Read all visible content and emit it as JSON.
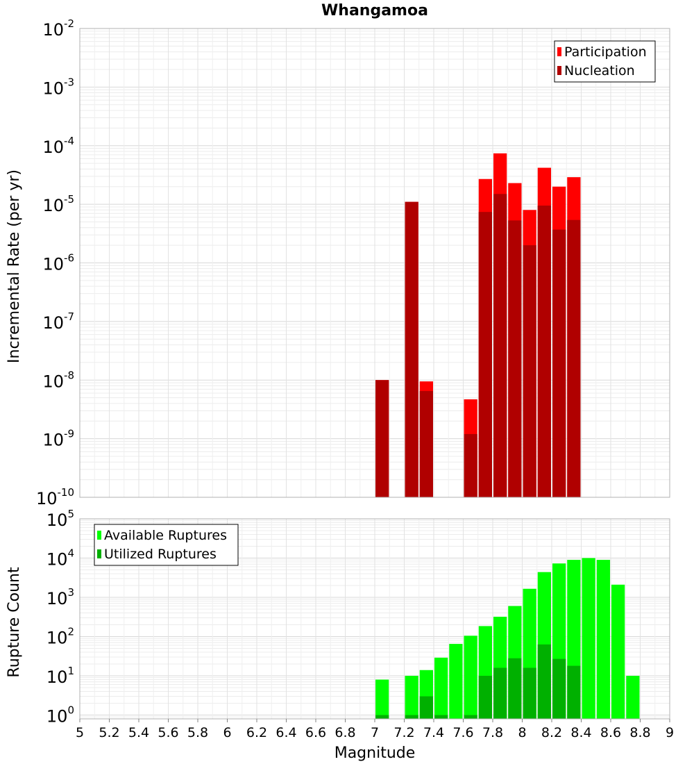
{
  "chart_data": [
    {
      "type": "bar",
      "title": "Whangamoa",
      "xlabel": "",
      "ylabel": "Incremental Rate (per yr)",
      "y_scale": "log",
      "ylim": [
        1e-10,
        0.01
      ],
      "xlim": [
        5,
        9
      ],
      "bin_width": 0.1,
      "grid": true,
      "legend_position": "top-right",
      "series": [
        {
          "name": "Participation",
          "color": "#ff0000",
          "x": [
            7.05,
            7.25,
            7.35,
            7.65,
            7.75,
            7.85,
            7.95,
            8.05,
            8.15,
            8.25,
            8.35
          ],
          "values": [
            1e-08,
            1.1e-05,
            9.5e-09,
            4.7e-09,
            2.7e-05,
            7.4e-05,
            2.3e-05,
            8e-06,
            4.2e-05,
            2e-05,
            2.9e-05
          ]
        },
        {
          "name": "Nucleation",
          "color": "#b00000",
          "x": [
            7.05,
            7.25,
            7.35,
            7.65,
            7.75,
            7.85,
            7.95,
            8.05,
            8.15,
            8.25,
            8.35
          ],
          "values": [
            1e-08,
            1.1e-05,
            6.5e-09,
            1.2e-09,
            7.4e-06,
            1.5e-05,
            5.3e-06,
            2e-06,
            9.5e-06,
            3.7e-06,
            5.4e-06
          ]
        }
      ]
    },
    {
      "type": "bar",
      "title": "",
      "xlabel": "Magnitude",
      "ylabel": "Rupture Count",
      "y_scale": "log",
      "ylim": [
        0.8,
        100000
      ],
      "xlim": [
        5,
        9
      ],
      "bin_width": 0.1,
      "grid": true,
      "legend_position": "top-left",
      "x_ticks": [
        "5",
        "5.2",
        "5.4",
        "5.6",
        "5.8",
        "6",
        "6.2",
        "6.4",
        "6.6",
        "6.8",
        "7",
        "7.2",
        "7.4",
        "7.6",
        "7.8",
        "8",
        "8.2",
        "8.4",
        "8.6",
        "8.8",
        "9"
      ],
      "series": [
        {
          "name": "Available Ruptures",
          "color": "#00ff00",
          "x": [
            7.05,
            7.25,
            7.35,
            7.45,
            7.55,
            7.65,
            7.75,
            7.85,
            7.95,
            8.05,
            8.15,
            8.25,
            8.35,
            8.45,
            8.55,
            8.65,
            8.75
          ],
          "values": [
            8,
            10,
            14,
            29,
            65,
            105,
            185,
            320,
            600,
            1650,
            4400,
            7300,
            9000,
            10000,
            9000,
            2100,
            10
          ]
        },
        {
          "name": "Utilized Ruptures",
          "color": "#00b000",
          "x": [
            7.05,
            7.25,
            7.35,
            7.45,
            7.65,
            7.75,
            7.85,
            7.95,
            8.05,
            8.15,
            8.25,
            8.35
          ],
          "values": [
            1,
            1,
            3,
            1,
            1,
            10,
            16,
            28,
            16,
            63,
            27,
            18
          ]
        }
      ]
    }
  ]
}
